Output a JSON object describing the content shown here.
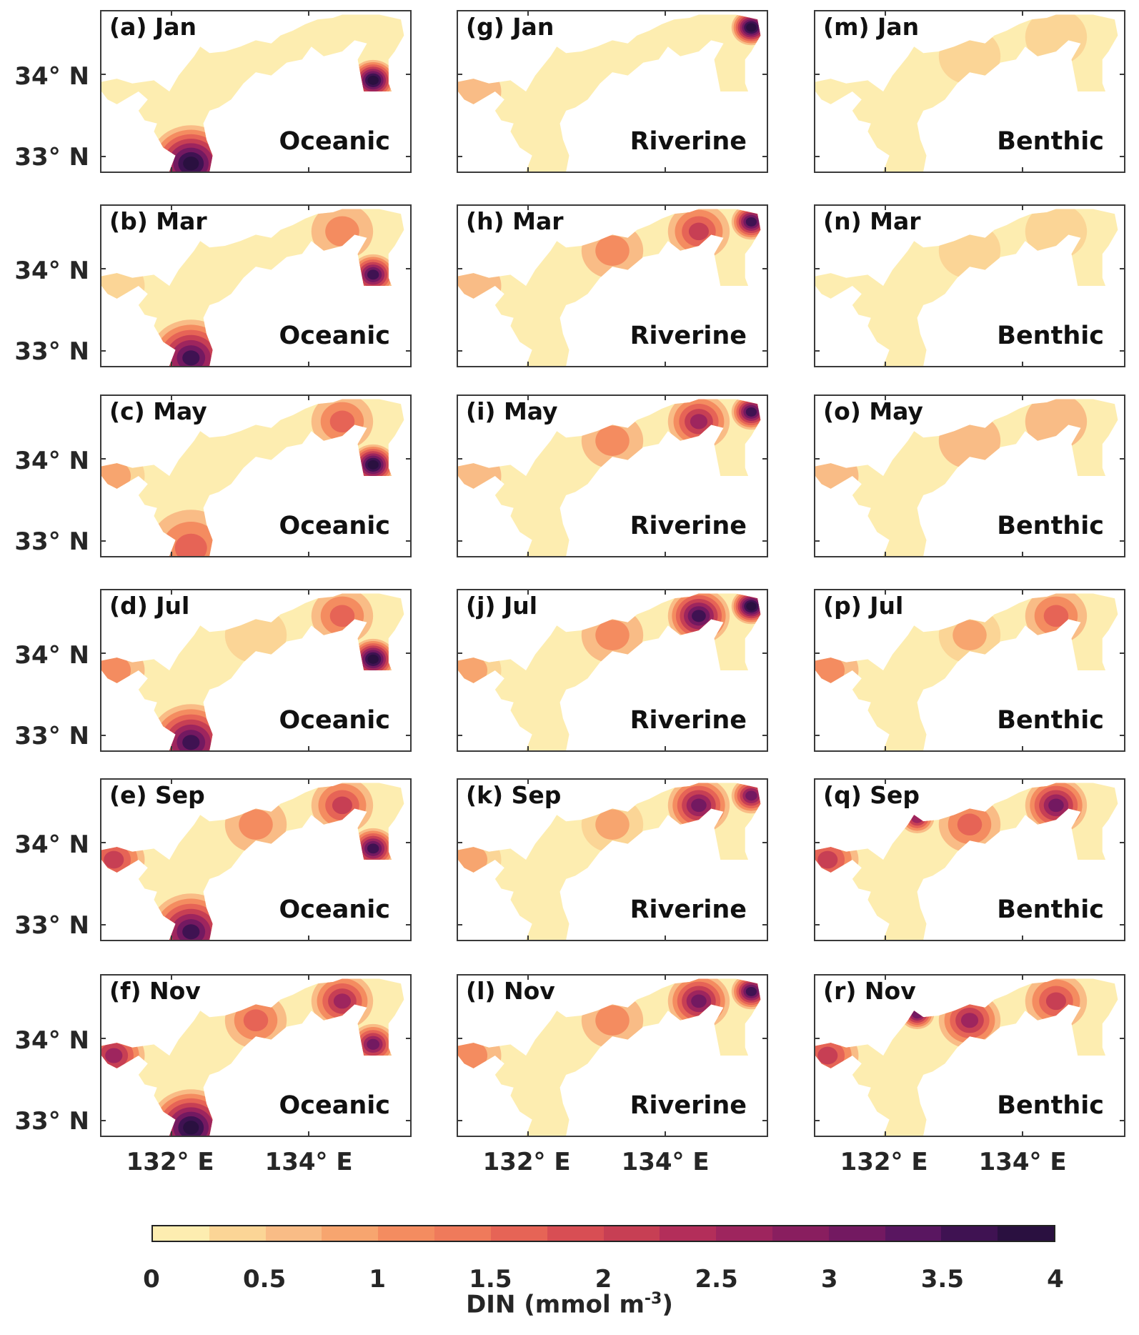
{
  "chart_data": {
    "type": "heatmap",
    "title": "",
    "colorbar": {
      "label": "DIN (mmol m",
      "label_exponent": "-3",
      "label_close": ")",
      "range": [
        0,
        4
      ],
      "ticks": [
        "0",
        "0.5",
        "1",
        "1.5",
        "2",
        "2.5",
        "3",
        "3.5",
        "4"
      ],
      "colors": [
        "#fdedb0",
        "#fbd596",
        "#f9bc86",
        "#f7a56f",
        "#f48c60",
        "#ef7a5b",
        "#e66456",
        "#d84e54",
        "#c73f54",
        "#b32e5a",
        "#9e255e",
        "#891e5f",
        "#731961",
        "#591660",
        "#3f1252",
        "#2a1040"
      ]
    },
    "y_ticks": [
      "34° N",
      "33° N"
    ],
    "x_ticks": [
      "132° E",
      "134° E"
    ],
    "panels": [
      {
        "label": "(a) Jan",
        "source": "Oceanic",
        "values": {
          "bungo": 4,
          "kii": 4
        }
      },
      {
        "label": "(b) Mar",
        "source": "Oceanic",
        "values": {
          "bungo": 3.5,
          "kii": 3.5,
          "osaka": 1,
          "west": 0.3
        }
      },
      {
        "label": "(c) May",
        "source": "Oceanic",
        "values": {
          "bungo": 1.5,
          "kii": 4,
          "osaka": 1.5,
          "west": 0.8
        }
      },
      {
        "label": "(d) Jul",
        "source": "Oceanic",
        "values": {
          "bungo": 3.5,
          "kii": 4,
          "osaka": 1.5,
          "west": 1,
          "central": 0.3
        }
      },
      {
        "label": "(e) Sep",
        "source": "Oceanic",
        "values": {
          "bungo": 3.5,
          "kii": 3.5,
          "osaka": 2,
          "west": 2,
          "central": 1
        }
      },
      {
        "label": "(f) Nov",
        "source": "Oceanic",
        "values": {
          "bungo": 4,
          "kii": 3,
          "osaka": 2.5,
          "west": 2.5,
          "central": 1.5
        }
      },
      {
        "label": "(g) Jan",
        "source": "Riverine",
        "values": {
          "ne": 4,
          "west": 0.5
        }
      },
      {
        "label": "(h) Mar",
        "source": "Riverine",
        "values": {
          "ne": 3.5,
          "osaka": 2,
          "central": 1,
          "west": 0.6
        }
      },
      {
        "label": "(i) May",
        "source": "Riverine",
        "values": {
          "ne": 3.5,
          "osaka": 2.5,
          "central": 1,
          "west": 0.5
        }
      },
      {
        "label": "(j) Jul",
        "source": "Riverine",
        "values": {
          "ne": 4,
          "osaka": 3.5,
          "central": 1.2,
          "west": 0.8
        }
      },
      {
        "label": "(k) Sep",
        "source": "Riverine",
        "values": {
          "ne": 3,
          "osaka": 3,
          "central": 0.8,
          "west": 0.8
        }
      },
      {
        "label": "(l) Nov",
        "source": "Riverine",
        "values": {
          "ne": 3.5,
          "osaka": 3,
          "central": 1,
          "west": 1
        }
      },
      {
        "label": "(m) Jan",
        "source": "Benthic",
        "values": {
          "osaka": 0.3,
          "central": 0.3
        }
      },
      {
        "label": "(n) Mar",
        "source": "Benthic",
        "values": {
          "osaka": 0.3,
          "central": 0.3
        }
      },
      {
        "label": "(o) May",
        "source": "Benthic",
        "values": {
          "osaka": 0.6,
          "central": 0.5,
          "west": 0.5
        }
      },
      {
        "label": "(p) Jul",
        "source": "Benthic",
        "values": {
          "osaka": 1.5,
          "west": 1,
          "central": 0.8
        }
      },
      {
        "label": "(q) Sep",
        "source": "Benthic",
        "values": {
          "osaka": 3,
          "west": 2,
          "central": 1.5,
          "hiroshima": 2.5
        }
      },
      {
        "label": "(r) Nov",
        "source": "Benthic",
        "values": {
          "osaka": 2,
          "west": 2,
          "central": 2.5,
          "hiroshima": 3
        }
      }
    ]
  }
}
